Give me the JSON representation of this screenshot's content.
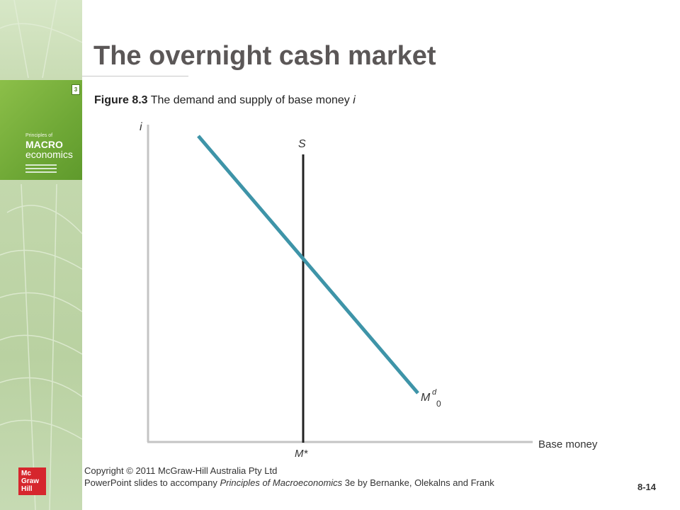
{
  "slide": {
    "title": "The overnight cash market",
    "figure_label": "Figure 8.3",
    "figure_text": "The demand and supply of base money",
    "figure_suffix": "i",
    "page_number": "8-14"
  },
  "book": {
    "badge": "3",
    "line1": "Principles of",
    "line2": "MACRO",
    "line3": "economics"
  },
  "footer": {
    "copyright": "Copyright © 2011 McGraw-Hill Australia Pty Ltd",
    "line2_prefix": "PowerPoint slides to accompany ",
    "line2_title": "Principles of Macroeconomics",
    "line2_suffix": " 3e by Bernanke, Olekalns and Frank"
  },
  "logo": {
    "lines": [
      "Mc",
      "Graw",
      "Hill"
    ],
    "color": "#d6262d"
  },
  "chart_data": {
    "type": "line",
    "ylabel": "i",
    "xlabel": "Base money",
    "series": [
      {
        "name": "S",
        "color": "#222222"
      },
      {
        "name": "M",
        "superscript": "d",
        "subscript": "0",
        "color": "#3e94a8"
      }
    ],
    "equilibrium_label": "M*"
  },
  "colors": {
    "title": "#5b5757",
    "sidebar": "#c3d8ad",
    "demand_curve": "#3e94a8",
    "axes": "#c4c4c4"
  }
}
